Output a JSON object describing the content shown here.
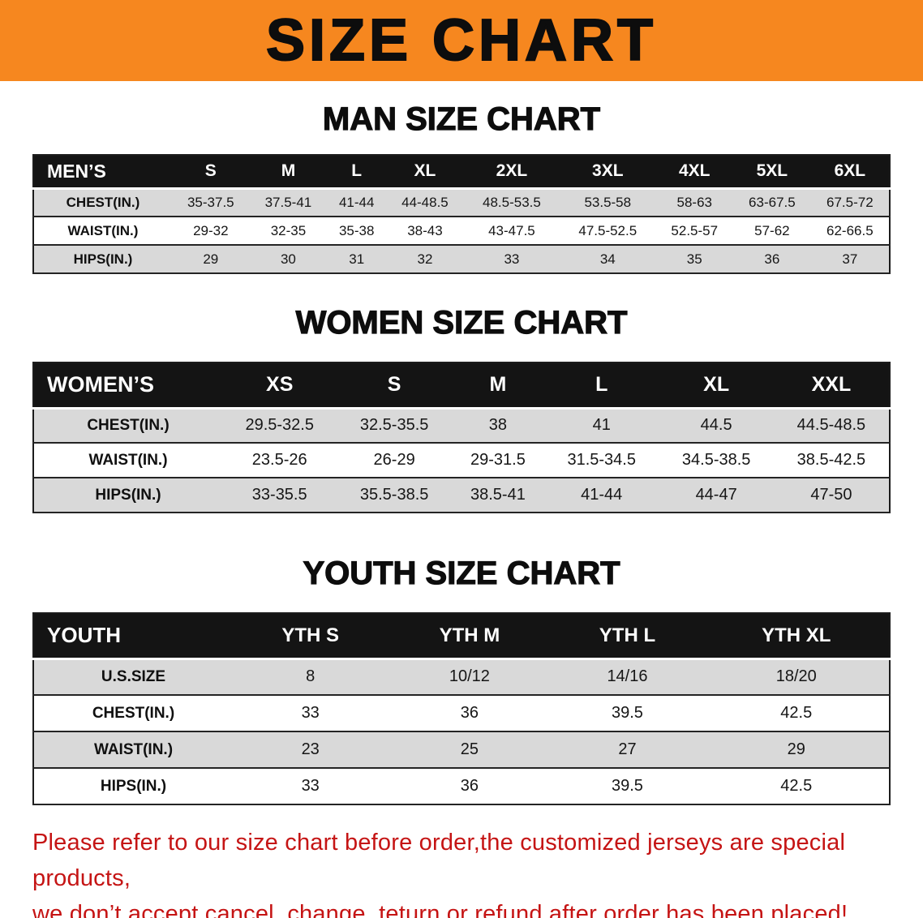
{
  "banner": {
    "title": "SIZE CHART",
    "bg_color": "#f6871f"
  },
  "sections": [
    {
      "heading": "MAN SIZE CHART",
      "table": {
        "header": [
          "MEN’S",
          "S",
          "M",
          "L",
          "XL",
          "2XL",
          "3XL",
          "4XL",
          "5XL",
          "6XL"
        ],
        "rows": [
          [
            "CHEST(IN.)",
            "35-37.5",
            "37.5-41",
            "41-44",
            "44-48.5",
            "48.5-53.5",
            "53.5-58",
            "58-63",
            "63-67.5",
            "67.5-72"
          ],
          [
            "WAIST(IN.)",
            "29-32",
            "32-35",
            "35-38",
            "38-43",
            "43-47.5",
            "47.5-52.5",
            "52.5-57",
            "57-62",
            "62-66.5"
          ],
          [
            "HIPS(IN.)",
            "29",
            "30",
            "31",
            "32",
            "33",
            "34",
            "35",
            "36",
            "37"
          ]
        ]
      }
    },
    {
      "heading": "WOMEN SIZE CHART",
      "table": {
        "header": [
          "WOMEN’S",
          "XS",
          "S",
          "M",
          "L",
          "XL",
          "XXL"
        ],
        "rows": [
          [
            "CHEST(IN.)",
            "29.5-32.5",
            "32.5-35.5",
            "38",
            "41",
            "44.5",
            "44.5-48.5"
          ],
          [
            "WAIST(IN.)",
            "23.5-26",
            "26-29",
            "29-31.5",
            "31.5-34.5",
            "34.5-38.5",
            "38.5-42.5"
          ],
          [
            "HIPS(IN.)",
            "33-35.5",
            "35.5-38.5",
            "38.5-41",
            "41-44",
            "44-47",
            "47-50"
          ]
        ]
      }
    },
    {
      "heading": "YOUTH SIZE CHART",
      "table": {
        "header": [
          "YOUTH",
          "YTH S",
          "YTH M",
          "YTH L",
          "YTH XL"
        ],
        "rows": [
          [
            "U.S.SIZE",
            "8",
            "10/12",
            "14/16",
            "18/20"
          ],
          [
            "CHEST(IN.)",
            "33",
            "36",
            "39.5",
            "42.5"
          ],
          [
            "WAIST(IN.)",
            "23",
            "25",
            "27",
            "29"
          ],
          [
            "HIPS(IN.)",
            "33",
            "36",
            "39.5",
            "42.5"
          ]
        ]
      }
    }
  ],
  "notice": {
    "color": "#c51414",
    "lines": [
      "Please refer to our size chart before order,the customized jerseys are special products,",
      "we don’t accept cancel, change, teturn or refund after order has been placed!"
    ]
  }
}
